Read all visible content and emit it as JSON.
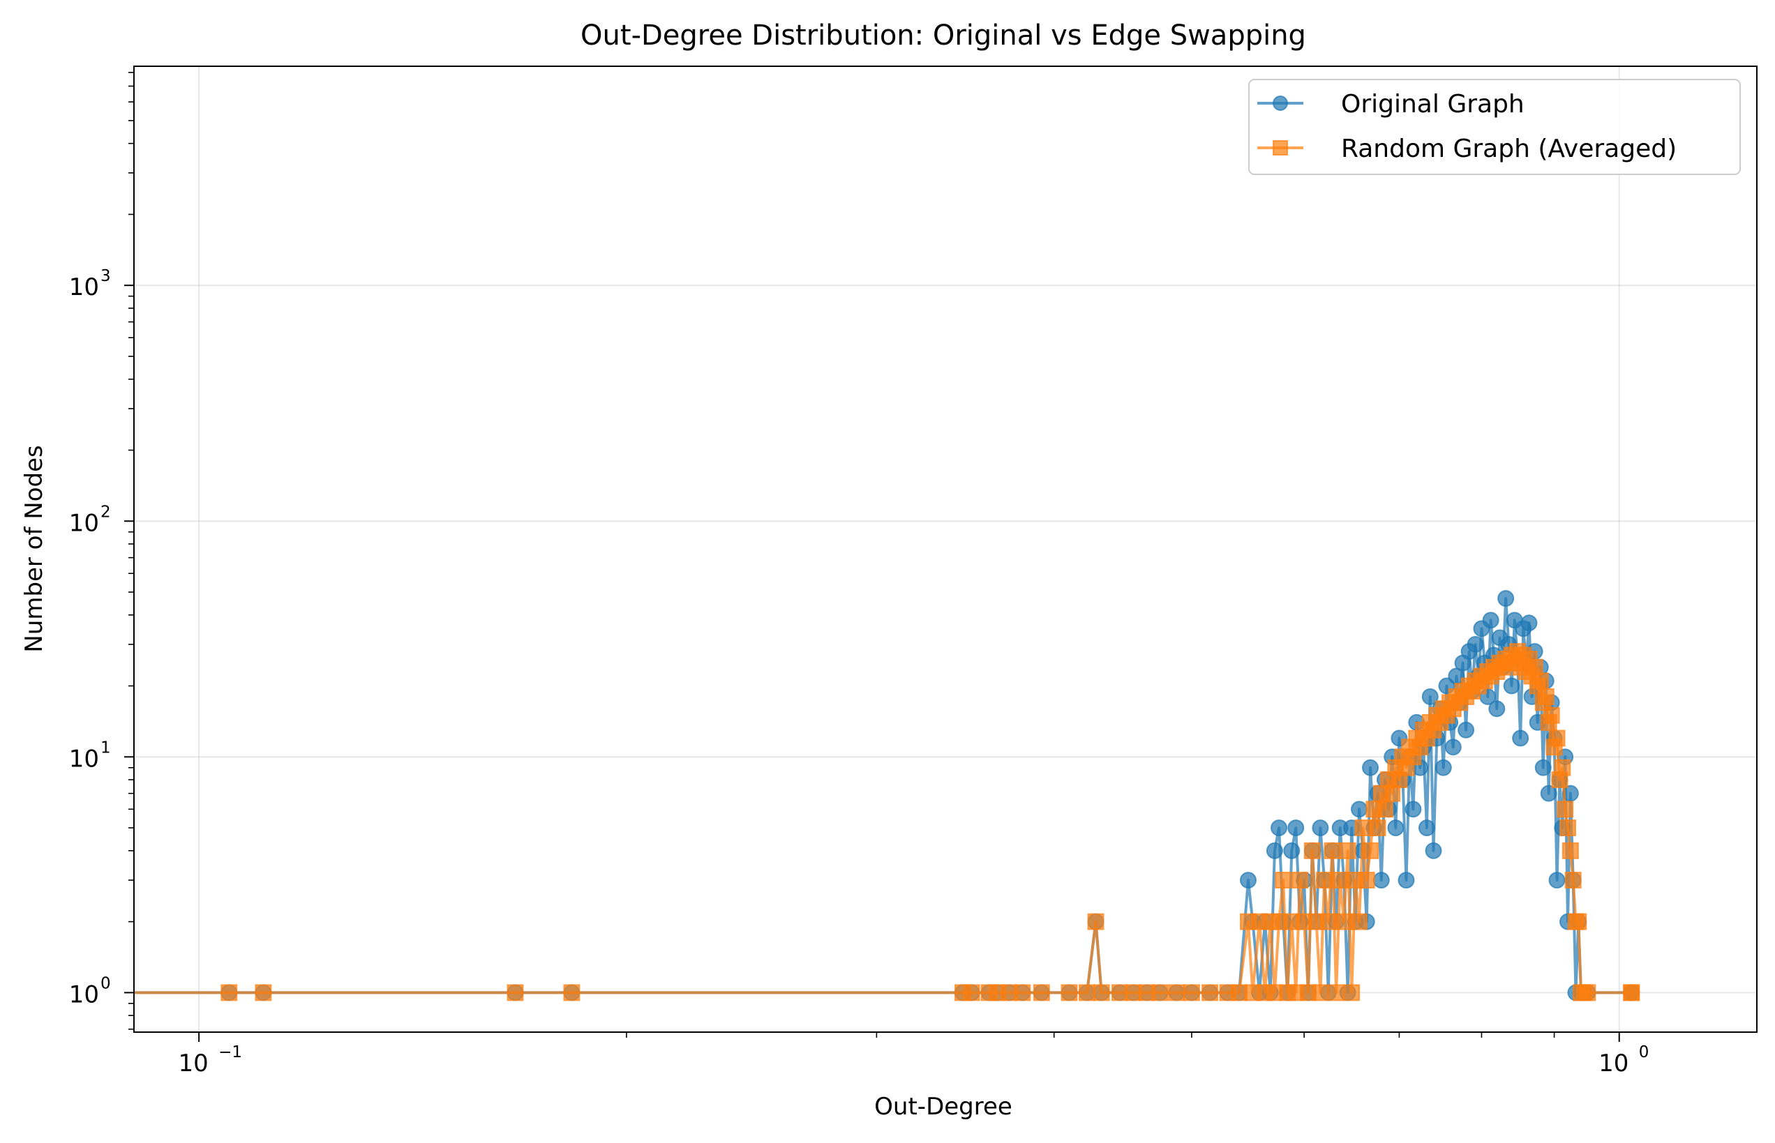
{
  "chart_data": {
    "type": "line",
    "title": "Out-Degree Distribution: Original vs Edge Swapping",
    "xlabel": "Out-Degree",
    "ylabel": "Number of Nodes",
    "xscale": "log",
    "yscale": "log",
    "xlim": [
      0.09,
      1.25
    ],
    "ylim": [
      0.68,
      8500
    ],
    "x_ticks": [
      {
        "value": 0.1,
        "base": "10",
        "exp": "−1"
      },
      {
        "value": 1,
        "base": "10",
        "exp": "0"
      }
    ],
    "y_ticks": [
      {
        "value": 1,
        "base": "10",
        "exp": "0"
      },
      {
        "value": 10,
        "base": "10",
        "exp": "1"
      },
      {
        "value": 100,
        "base": "10",
        "exp": "2"
      },
      {
        "value": 1000,
        "base": "10",
        "exp": "3"
      }
    ],
    "grid": true,
    "legend_position": "top-right",
    "series": [
      {
        "name": "Original Graph",
        "marker": "circle",
        "color": "#1f77b4",
        "points": [
          [
            0.105,
            1
          ],
          [
            0.111,
            1
          ],
          [
            0.167,
            1
          ],
          [
            0.183,
            1
          ],
          [
            0.345,
            1
          ],
          [
            0.35,
            1
          ],
          [
            0.36,
            1
          ],
          [
            0.365,
            1
          ],
          [
            0.372,
            1
          ],
          [
            0.38,
            1
          ],
          [
            0.392,
            1
          ],
          [
            0.41,
            1
          ],
          [
            0.422,
            1
          ],
          [
            0.428,
            2
          ],
          [
            0.432,
            1
          ],
          [
            0.445,
            1
          ],
          [
            0.455,
            1
          ],
          [
            0.465,
            1
          ],
          [
            0.475,
            1
          ],
          [
            0.488,
            1
          ],
          [
            0.5,
            1
          ],
          [
            0.515,
            1
          ],
          [
            0.53,
            1
          ],
          [
            0.54,
            1
          ],
          [
            0.548,
            3
          ],
          [
            0.552,
            2
          ],
          [
            0.558,
            1
          ],
          [
            0.563,
            2
          ],
          [
            0.568,
            1
          ],
          [
            0.572,
            4
          ],
          [
            0.576,
            5
          ],
          [
            0.58,
            2
          ],
          [
            0.584,
            1
          ],
          [
            0.588,
            4
          ],
          [
            0.592,
            5
          ],
          [
            0.596,
            2
          ],
          [
            0.6,
            3
          ],
          [
            0.604,
            1
          ],
          [
            0.608,
            4
          ],
          [
            0.612,
            2
          ],
          [
            0.616,
            5
          ],
          [
            0.62,
            3
          ],
          [
            0.624,
            1
          ],
          [
            0.628,
            4
          ],
          [
            0.632,
            2
          ],
          [
            0.636,
            5
          ],
          [
            0.64,
            3
          ],
          [
            0.644,
            1
          ],
          [
            0.648,
            5
          ],
          [
            0.652,
            2
          ],
          [
            0.656,
            6
          ],
          [
            0.66,
            4
          ],
          [
            0.664,
            2
          ],
          [
            0.668,
            9
          ],
          [
            0.672,
            5
          ],
          [
            0.676,
            7
          ],
          [
            0.68,
            3
          ],
          [
            0.684,
            8
          ],
          [
            0.688,
            6
          ],
          [
            0.692,
            10
          ],
          [
            0.696,
            5
          ],
          [
            0.7,
            12
          ],
          [
            0.704,
            8
          ],
          [
            0.708,
            3
          ],
          [
            0.712,
            10
          ],
          [
            0.716,
            6
          ],
          [
            0.72,
            14
          ],
          [
            0.724,
            9
          ],
          [
            0.728,
            11
          ],
          [
            0.732,
            5
          ],
          [
            0.736,
            18
          ],
          [
            0.74,
            4
          ],
          [
            0.744,
            12
          ],
          [
            0.748,
            16
          ],
          [
            0.752,
            9
          ],
          [
            0.756,
            20
          ],
          [
            0.76,
            14
          ],
          [
            0.764,
            11
          ],
          [
            0.768,
            22
          ],
          [
            0.772,
            17
          ],
          [
            0.776,
            25
          ],
          [
            0.78,
            13
          ],
          [
            0.784,
            28
          ],
          [
            0.788,
            19
          ],
          [
            0.792,
            30
          ],
          [
            0.796,
            22
          ],
          [
            0.8,
            35
          ],
          [
            0.804,
            25
          ],
          [
            0.808,
            18
          ],
          [
            0.812,
            38
          ],
          [
            0.816,
            27
          ],
          [
            0.82,
            16
          ],
          [
            0.824,
            32
          ],
          [
            0.828,
            24
          ],
          [
            0.832,
            47
          ],
          [
            0.836,
            30
          ],
          [
            0.84,
            20
          ],
          [
            0.844,
            38
          ],
          [
            0.848,
            26
          ],
          [
            0.852,
            12
          ],
          [
            0.856,
            35
          ],
          [
            0.86,
            25
          ],
          [
            0.864,
            37
          ],
          [
            0.868,
            18
          ],
          [
            0.872,
            28
          ],
          [
            0.876,
            14
          ],
          [
            0.88,
            24
          ],
          [
            0.884,
            9
          ],
          [
            0.888,
            21
          ],
          [
            0.892,
            7
          ],
          [
            0.896,
            17
          ],
          [
            0.9,
            12
          ],
          [
            0.904,
            3
          ],
          [
            0.908,
            8
          ],
          [
            0.912,
            5
          ],
          [
            0.916,
            10
          ],
          [
            0.92,
            2
          ],
          [
            0.924,
            7
          ],
          [
            0.928,
            3
          ],
          [
            0.932,
            1
          ],
          [
            0.936,
            2
          ],
          [
            0.94,
            1
          ],
          [
            0.945,
            1
          ],
          [
            0.95,
            1
          ],
          [
            1.02,
            1
          ],
          [
            1.02,
            1
          ]
        ]
      },
      {
        "name": "Random Graph (Averaged)",
        "marker": "square",
        "color": "#ff7f0e",
        "points": [
          [
            0.105,
            1
          ],
          [
            0.111,
            1
          ],
          [
            0.167,
            1
          ],
          [
            0.183,
            1
          ],
          [
            0.345,
            1
          ],
          [
            0.35,
            1
          ],
          [
            0.36,
            1
          ],
          [
            0.365,
            1
          ],
          [
            0.372,
            1
          ],
          [
            0.38,
            1
          ],
          [
            0.392,
            1
          ],
          [
            0.41,
            1
          ],
          [
            0.422,
            1
          ],
          [
            0.428,
            2
          ],
          [
            0.432,
            1
          ],
          [
            0.445,
            1
          ],
          [
            0.455,
            1
          ],
          [
            0.465,
            1
          ],
          [
            0.475,
            1
          ],
          [
            0.488,
            1
          ],
          [
            0.5,
            1
          ],
          [
            0.515,
            1
          ],
          [
            0.53,
            1
          ],
          [
            0.54,
            1
          ],
          [
            0.548,
            2
          ],
          [
            0.552,
            1
          ],
          [
            0.558,
            2
          ],
          [
            0.563,
            1
          ],
          [
            0.568,
            2
          ],
          [
            0.572,
            1
          ],
          [
            0.576,
            2
          ],
          [
            0.58,
            3
          ],
          [
            0.584,
            1
          ],
          [
            0.588,
            2
          ],
          [
            0.592,
            1
          ],
          [
            0.596,
            3
          ],
          [
            0.6,
            2
          ],
          [
            0.604,
            1
          ],
          [
            0.608,
            4
          ],
          [
            0.612,
            2
          ],
          [
            0.616,
            1
          ],
          [
            0.62,
            3
          ],
          [
            0.624,
            2
          ],
          [
            0.628,
            4
          ],
          [
            0.632,
            1
          ],
          [
            0.636,
            3
          ],
          [
            0.64,
            2
          ],
          [
            0.644,
            4
          ],
          [
            0.648,
            1
          ],
          [
            0.652,
            3
          ],
          [
            0.656,
            2
          ],
          [
            0.66,
            5
          ],
          [
            0.664,
            3
          ],
          [
            0.668,
            4
          ],
          [
            0.672,
            6
          ],
          [
            0.676,
            5
          ],
          [
            0.68,
            7
          ],
          [
            0.684,
            6
          ],
          [
            0.688,
            8
          ],
          [
            0.692,
            7
          ],
          [
            0.696,
            9
          ],
          [
            0.7,
            8
          ],
          [
            0.704,
            10
          ],
          [
            0.708,
            9
          ],
          [
            0.712,
            11
          ],
          [
            0.716,
            10
          ],
          [
            0.72,
            12
          ],
          [
            0.724,
            11
          ],
          [
            0.728,
            13
          ],
          [
            0.732,
            12
          ],
          [
            0.736,
            14
          ],
          [
            0.74,
            13
          ],
          [
            0.744,
            15
          ],
          [
            0.748,
            14
          ],
          [
            0.752,
            16
          ],
          [
            0.756,
            15
          ],
          [
            0.76,
            17
          ],
          [
            0.764,
            16
          ],
          [
            0.768,
            18
          ],
          [
            0.772,
            17
          ],
          [
            0.776,
            19
          ],
          [
            0.78,
            18
          ],
          [
            0.784,
            20
          ],
          [
            0.788,
            19
          ],
          [
            0.792,
            21
          ],
          [
            0.796,
            20
          ],
          [
            0.8,
            22
          ],
          [
            0.804,
            21
          ],
          [
            0.808,
            23
          ],
          [
            0.812,
            22
          ],
          [
            0.816,
            24
          ],
          [
            0.82,
            23
          ],
          [
            0.824,
            25
          ],
          [
            0.828,
            24
          ],
          [
            0.832,
            26
          ],
          [
            0.836,
            25
          ],
          [
            0.84,
            27
          ],
          [
            0.844,
            25
          ],
          [
            0.848,
            28
          ],
          [
            0.852,
            24
          ],
          [
            0.856,
            27
          ],
          [
            0.86,
            23
          ],
          [
            0.864,
            26
          ],
          [
            0.868,
            22
          ],
          [
            0.872,
            24
          ],
          [
            0.876,
            20
          ],
          [
            0.88,
            21
          ],
          [
            0.884,
            17
          ],
          [
            0.888,
            18
          ],
          [
            0.892,
            14
          ],
          [
            0.896,
            15
          ],
          [
            0.9,
            11
          ],
          [
            0.904,
            12
          ],
          [
            0.908,
            8
          ],
          [
            0.912,
            9
          ],
          [
            0.916,
            6
          ],
          [
            0.92,
            5
          ],
          [
            0.924,
            4
          ],
          [
            0.928,
            3
          ],
          [
            0.932,
            2
          ],
          [
            0.936,
            2
          ],
          [
            0.94,
            1
          ],
          [
            0.945,
            1
          ],
          [
            0.95,
            1
          ],
          [
            1.02,
            1
          ],
          [
            1.02,
            1
          ]
        ]
      }
    ]
  }
}
